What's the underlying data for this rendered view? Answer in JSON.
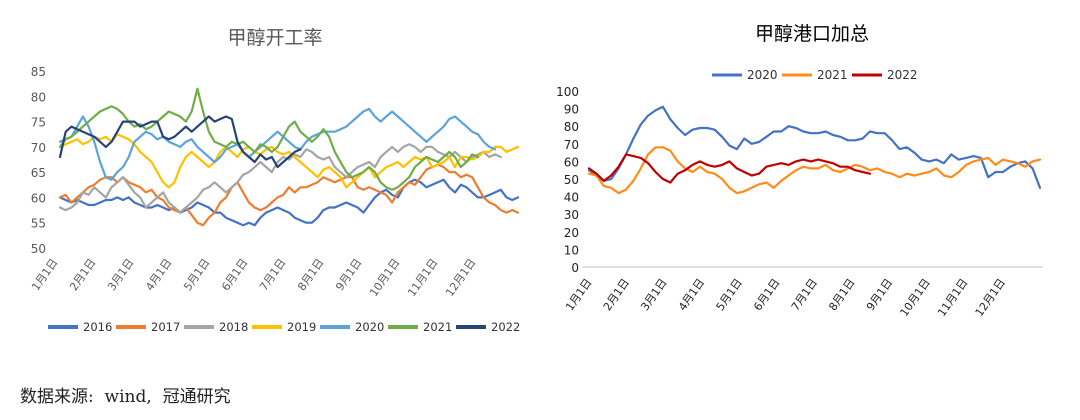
{
  "source_note": "数据来源:  wind,  冠通研究",
  "chart_data": [
    {
      "type": "line",
      "title": "甲醇开工率",
      "ylim": [
        50,
        85
      ],
      "yticks": [
        "50",
        "55",
        "60",
        "65",
        "70",
        "75",
        "80",
        "85"
      ],
      "xticks": [
        "1月1日",
        "2月1日",
        "3月1日",
        "4月1日",
        "5月1日",
        "6月1日",
        "7月1日",
        "8月1日",
        "9月1日",
        "10月1日",
        "11月1日",
        "12月1日"
      ],
      "legend_position": "bottom",
      "grid": false,
      "series": [
        {
          "name": "2016",
          "color": "#4472c4",
          "values": [
            60,
            59.5,
            59,
            59.5,
            59,
            58.5,
            58.5,
            59,
            59.5,
            59.5,
            60,
            59.5,
            60,
            59,
            58.5,
            58,
            58,
            58.5,
            58,
            57.5,
            58,
            57,
            57.5,
            58,
            59,
            58.5,
            58,
            57,
            57,
            56,
            55.5,
            55,
            54.5,
            55,
            54.5,
            56,
            57,
            57.5,
            58,
            57.5,
            57,
            56,
            55.5,
            55,
            55,
            56,
            57.5,
            58,
            58,
            58.5,
            59,
            58.5,
            58,
            57,
            58.5,
            60,
            61,
            61.5,
            60.5,
            60,
            62,
            63,
            63.5,
            63,
            62,
            62.5,
            63,
            63.5,
            62,
            61,
            62.5,
            62,
            61,
            60,
            60,
            60.5,
            61,
            61.5,
            60,
            59.5,
            60
          ]
        },
        {
          "name": "2017",
          "color": "#ed7d31",
          "values": [
            60,
            60.5,
            59,
            60,
            61,
            62,
            62.5,
            63.5,
            64,
            64,
            63,
            64,
            63,
            62.5,
            62,
            61,
            61.5,
            60,
            59.5,
            58,
            57.5,
            57,
            58,
            56.5,
            55,
            54.5,
            56,
            57,
            59,
            60,
            62,
            63,
            61,
            59,
            58,
            57.5,
            58,
            59,
            60,
            60.5,
            62,
            61,
            62,
            62,
            62.5,
            63,
            64,
            63.5,
            63,
            63.5,
            64,
            64,
            62,
            61.5,
            62,
            61.5,
            61,
            60.5,
            59,
            61,
            62,
            63,
            62.5,
            64,
            65.5,
            66,
            66.5,
            66,
            65,
            65,
            64,
            64.5,
            64,
            62,
            60,
            59,
            58.5,
            57.5,
            57,
            57.5,
            57
          ]
        },
        {
          "name": "2018",
          "color": "#a5a5a5",
          "values": [
            58,
            57.5,
            58,
            59,
            61,
            60.5,
            62,
            61,
            60,
            62,
            63,
            64,
            62.5,
            61,
            60,
            58,
            59,
            60,
            61,
            59,
            58,
            57,
            58,
            59,
            60,
            61.5,
            62,
            63,
            62,
            61,
            62,
            63,
            64.5,
            65,
            66,
            67,
            66,
            65,
            67,
            68,
            67.5,
            68.5,
            68,
            69.5,
            69,
            68,
            67.5,
            68,
            66,
            65,
            64,
            65,
            66,
            66.5,
            67,
            66,
            68,
            69,
            70,
            69,
            70,
            70.5,
            70,
            69,
            70,
            70,
            69,
            68.5,
            68,
            69,
            68,
            67,
            68,
            68.5,
            69,
            68,
            68.5,
            68
          ]
        },
        {
          "name": "2019",
          "color": "#ffc000",
          "values": [
            70,
            70.5,
            71,
            71.5,
            70.5,
            71,
            72,
            71.5,
            72,
            71,
            72.5,
            72,
            71.5,
            70.5,
            69,
            68,
            67,
            65,
            63,
            62,
            63,
            66,
            68,
            69,
            68,
            67,
            66,
            67,
            69,
            70,
            69,
            68,
            69.5,
            70,
            69,
            68.5,
            69.5,
            70,
            69,
            68.5,
            69,
            68,
            67,
            66,
            65,
            64,
            65.5,
            66,
            65,
            64,
            62,
            63,
            64,
            65,
            66,
            64,
            65,
            66,
            66.5,
            67,
            66,
            67,
            68,
            67.5,
            68,
            66,
            66.5,
            67,
            68,
            66,
            68,
            68,
            67.5,
            68,
            69,
            69,
            70,
            70,
            69,
            69.5,
            70
          ]
        },
        {
          "name": "2020",
          "color": "#5ba3d9",
          "values": [
            71,
            71.5,
            72,
            74,
            76,
            74,
            71,
            67,
            64,
            63.5,
            65,
            66,
            68,
            71,
            72,
            73,
            72.5,
            71.5,
            72,
            71,
            70.5,
            70,
            71,
            71.5,
            70,
            69,
            68,
            67,
            68,
            69.5,
            70,
            70.5,
            69,
            68,
            69,
            70,
            71,
            72,
            73,
            72,
            71,
            70,
            69.5,
            71,
            72,
            72.5,
            73,
            73,
            73,
            73.5,
            74,
            75,
            76,
            77,
            77.5,
            76,
            75,
            76,
            77,
            76,
            75,
            74,
            73,
            72,
            71,
            72,
            73,
            74,
            75.5,
            76,
            75,
            74,
            73,
            72.5,
            71,
            70,
            69.5
          ]
        },
        {
          "name": "2021",
          "color": "#70ad47",
          "values": [
            70,
            71.5,
            72,
            73,
            74,
            75,
            76,
            77,
            77.5,
            78,
            77.5,
            76.5,
            75,
            74,
            74.5,
            73.5,
            74,
            75,
            76,
            77,
            76.5,
            76,
            75,
            77,
            81.5,
            77,
            73,
            71,
            70.5,
            70,
            71,
            70.5,
            71,
            70,
            69,
            70.5,
            70,
            69,
            70,
            72,
            74,
            75,
            73,
            72,
            71,
            72,
            73.5,
            72,
            69,
            67,
            65,
            64,
            64.5,
            65,
            66,
            65,
            63,
            62,
            61.5,
            62,
            63,
            64,
            66,
            67,
            68,
            67.5,
            67,
            68,
            69,
            68,
            66,
            67,
            68.5,
            68
          ]
        },
        {
          "name": "2022",
          "color": "#264478",
          "values": [
            68,
            73,
            74,
            73.5,
            73,
            72.5,
            72,
            71,
            70,
            71,
            73,
            75,
            75,
            75,
            74,
            74.5,
            75,
            75,
            72,
            71.5,
            72,
            73,
            74,
            73,
            74,
            75,
            76,
            75,
            75.5,
            76,
            75.5,
            71,
            69,
            68,
            67,
            68.5,
            67.5,
            68,
            66,
            67,
            68,
            69,
            69.5
          ]
        }
      ]
    },
    {
      "type": "line",
      "title": "甲醇港口加总",
      "ylim": [
        0,
        100
      ],
      "yticks": [
        "0",
        "10",
        "20",
        "30",
        "40",
        "50",
        "60",
        "70",
        "80",
        "90",
        "100"
      ],
      "xticks": [
        "1月1日",
        "2月1日",
        "3月1日",
        "4月1日",
        "5月1日",
        "6月1日",
        "7月1日",
        "8月1日",
        "9月1日",
        "10月1日",
        "11月1日",
        "12月1日"
      ],
      "legend_position": "top",
      "grid": false,
      "series": [
        {
          "name": "2020",
          "color": "#4472c4",
          "values": [
            55,
            52,
            49,
            50,
            56,
            64,
            73,
            81,
            86,
            89,
            91,
            84,
            79,
            75,
            78,
            79,
            79,
            78,
            74,
            69,
            67,
            73,
            70,
            71,
            74,
            77,
            77,
            80,
            79,
            77,
            76,
            76,
            77,
            75,
            74,
            72,
            72,
            73,
            77,
            76,
            76,
            72,
            67,
            68,
            65,
            61,
            60,
            61,
            59,
            64,
            61,
            62,
            63,
            62,
            51,
            54,
            54,
            57,
            59,
            60,
            56,
            45
          ]
        },
        {
          "name": "2021",
          "color": "#ff8c1a",
          "values": [
            53,
            52,
            46,
            45,
            42,
            44,
            49,
            56,
            64,
            68,
            68,
            66,
            60,
            56,
            54,
            57,
            54,
            53,
            50,
            45,
            42,
            43,
            45,
            47,
            48,
            45,
            49,
            52,
            55,
            57,
            56,
            56,
            58,
            55,
            54,
            56,
            58,
            57,
            55,
            56,
            54,
            53,
            51,
            53,
            52,
            53,
            54,
            56,
            52,
            51,
            54,
            58,
            60,
            61,
            62,
            58,
            61,
            60,
            59,
            57,
            60,
            61
          ]
        },
        {
          "name": "2022",
          "color": "#c00000",
          "values": [
            56,
            53,
            49,
            52,
            57,
            64,
            63,
            62,
            59,
            54,
            50,
            48,
            53,
            55,
            58,
            60,
            58,
            57,
            58,
            60,
            56,
            54,
            52,
            53,
            57,
            58,
            59,
            58,
            60,
            61,
            60,
            61,
            60,
            59,
            57,
            57,
            55,
            54,
            53
          ]
        }
      ]
    }
  ]
}
